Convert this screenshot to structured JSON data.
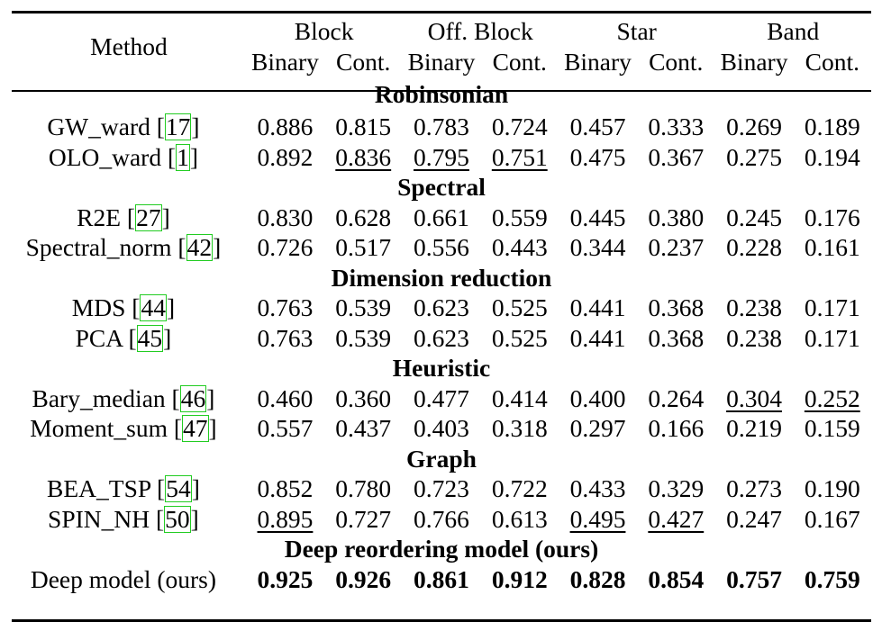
{
  "header": {
    "method_label": "Method",
    "groups": [
      "Block",
      "Off. Block",
      "Star",
      "Band"
    ],
    "sub": [
      "Binary",
      "Cont.",
      "Binary",
      "Cont.",
      "Binary",
      "Cont.",
      "Binary",
      "Cont."
    ]
  },
  "sections": [
    {
      "title": "Robinsonian",
      "rows": [
        {
          "name": "GW_ward",
          "cite": "17",
          "values": [
            "0.886",
            "0.815",
            "0.783",
            "0.724",
            "0.457",
            "0.333",
            "0.269",
            "0.189"
          ],
          "underline": []
        },
        {
          "name": "OLO_ward",
          "cite": "1",
          "values": [
            "0.892",
            "0.836",
            "0.795",
            "0.751",
            "0.475",
            "0.367",
            "0.275",
            "0.194"
          ],
          "underline": [
            1,
            2,
            3
          ]
        }
      ]
    },
    {
      "title": "Spectral",
      "rows": [
        {
          "name": "R2E",
          "cite": "27",
          "values": [
            "0.830",
            "0.628",
            "0.661",
            "0.559",
            "0.445",
            "0.380",
            "0.245",
            "0.176"
          ],
          "underline": []
        },
        {
          "name": "Spectral_norm",
          "cite": "42",
          "values": [
            "0.726",
            "0.517",
            "0.556",
            "0.443",
            "0.344",
            "0.237",
            "0.228",
            "0.161"
          ],
          "underline": []
        }
      ]
    },
    {
      "title": "Dimension reduction",
      "rows": [
        {
          "name": "MDS",
          "cite": "44",
          "values": [
            "0.763",
            "0.539",
            "0.623",
            "0.525",
            "0.441",
            "0.368",
            "0.238",
            "0.171"
          ],
          "underline": []
        },
        {
          "name": "PCA",
          "cite": "45",
          "values": [
            "0.763",
            "0.539",
            "0.623",
            "0.525",
            "0.441",
            "0.368",
            "0.238",
            "0.171"
          ],
          "underline": []
        }
      ]
    },
    {
      "title": "Heuristic",
      "rows": [
        {
          "name": "Bary_median",
          "cite": "46",
          "values": [
            "0.460",
            "0.360",
            "0.477",
            "0.414",
            "0.400",
            "0.264",
            "0.304",
            "0.252"
          ],
          "underline": [
            6,
            7
          ]
        },
        {
          "name": "Moment_sum",
          "cite": "47",
          "values": [
            "0.557",
            "0.437",
            "0.403",
            "0.318",
            "0.297",
            "0.166",
            "0.219",
            "0.159"
          ],
          "underline": []
        }
      ]
    },
    {
      "title": "Graph",
      "rows": [
        {
          "name": "BEA_TSP",
          "cite": "54",
          "values": [
            "0.852",
            "0.780",
            "0.723",
            "0.722",
            "0.433",
            "0.329",
            "0.273",
            "0.190"
          ],
          "underline": []
        },
        {
          "name": "SPIN_NH",
          "cite": "50",
          "values": [
            "0.895",
            "0.727",
            "0.766",
            "0.613",
            "0.495",
            "0.427",
            "0.247",
            "0.167"
          ],
          "underline": [
            0,
            4,
            5
          ]
        }
      ]
    },
    {
      "title": "Deep reordering model (ours)",
      "rows": [
        {
          "name": "Deep model (ours)",
          "cite": "",
          "values": [
            "0.925",
            "0.926",
            "0.861",
            "0.912",
            "0.828",
            "0.854",
            "0.757",
            "0.759"
          ],
          "underline": [],
          "bold": true
        }
      ]
    }
  ]
}
